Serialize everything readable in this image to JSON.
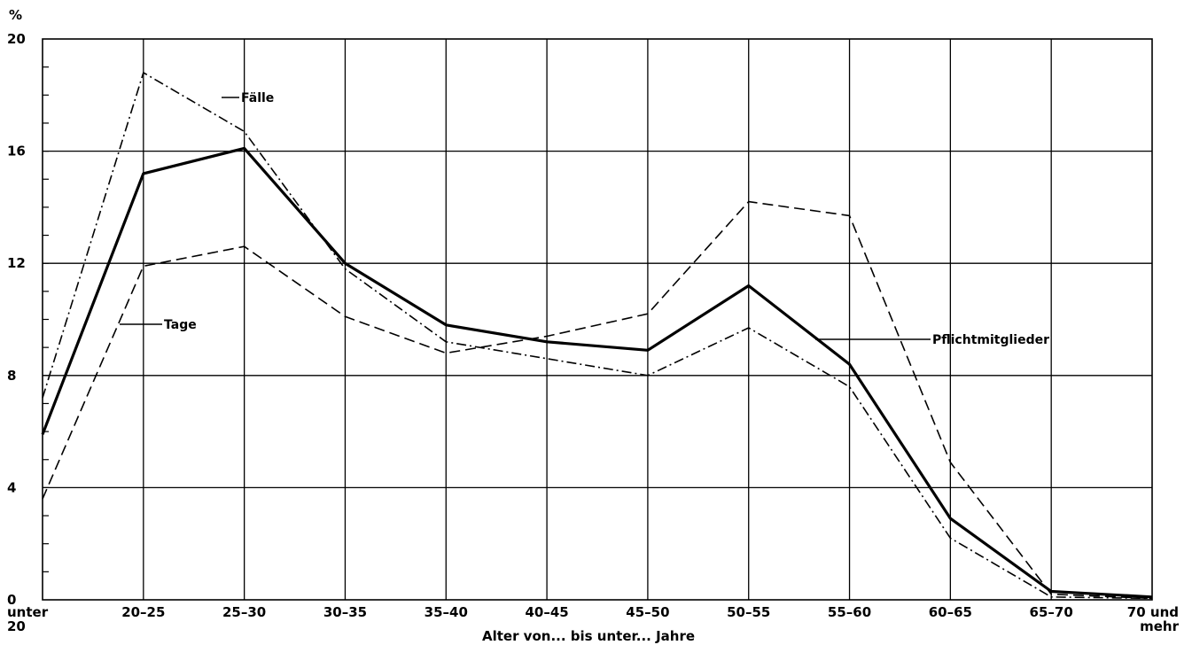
{
  "chart_data": {
    "type": "line",
    "ylabel": "%",
    "xlabel": "Alter von... bis unter... Jahre",
    "ylim": [
      0,
      20
    ],
    "yticks": [
      "0",
      "4",
      "8",
      "12",
      "16",
      "20"
    ],
    "grid": true,
    "categories": [
      [
        "unter",
        "20"
      ],
      [
        "20–25"
      ],
      [
        "25–30"
      ],
      [
        "30–35"
      ],
      [
        "35–40"
      ],
      [
        "40–45"
      ],
      [
        "45–50"
      ],
      [
        "50–55"
      ],
      [
        "55–60"
      ],
      [
        "60–65"
      ],
      [
        "65–70"
      ],
      [
        "70 und",
        "mehr"
      ]
    ],
    "series": [
      {
        "name": "Pflichtmitglieder",
        "style": "solid-bold",
        "values": [
          5.9,
          15.2,
          16.1,
          12.0,
          9.8,
          9.2,
          8.9,
          11.2,
          8.4,
          2.9,
          0.3,
          0.1
        ]
      },
      {
        "name": "Fälle",
        "style": "dash-dot",
        "values": [
          7.2,
          18.8,
          16.7,
          11.8,
          9.2,
          8.6,
          8.0,
          9.7,
          7.6,
          2.2,
          0.1,
          0.05
        ]
      },
      {
        "name": "Tage",
        "style": "dashed",
        "values": [
          3.6,
          11.9,
          12.6,
          10.1,
          8.8,
          9.4,
          10.2,
          14.2,
          13.7,
          4.9,
          0.2,
          0.05
        ]
      }
    ]
  }
}
